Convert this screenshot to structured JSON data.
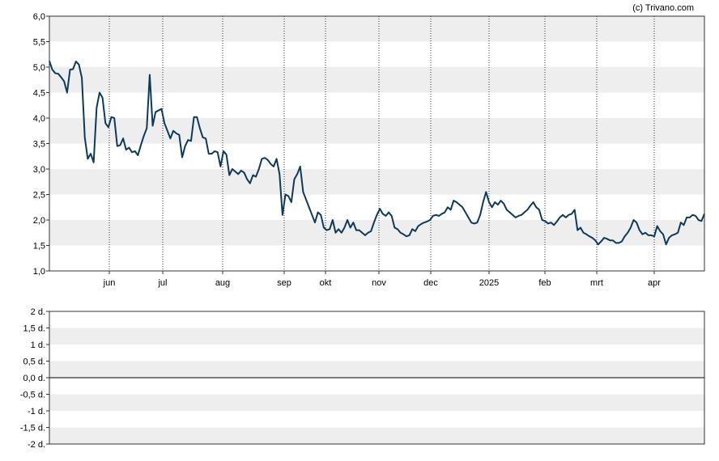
{
  "credit": "(c) Trivano.com",
  "chart_data": [
    {
      "type": "line",
      "name_hint": "price",
      "x_tick_labels": [
        "jun",
        "jul",
        "aug",
        "sep",
        "okt",
        "nov",
        "dec",
        "2025",
        "feb",
        "mrt",
        "apr"
      ],
      "y_tick_labels": [
        "1,0",
        "1,5",
        "2,0",
        "2,5",
        "3,0",
        "3,5",
        "4,0",
        "4,5",
        "5,0",
        "5,5",
        "6,0"
      ],
      "ylim": [
        1.0,
        6.0
      ],
      "grid": true,
      "band_color": "#eeeeee",
      "line_color": "#0b3a5c",
      "series": [
        {
          "values": [
            5.12,
            4.95,
            4.88,
            4.87,
            4.8,
            4.72,
            4.5,
            4.95,
            4.96,
            5.11,
            5.05,
            4.79,
            3.62,
            3.2,
            3.3,
            3.13,
            4.2,
            4.5,
            4.4,
            3.9,
            3.82,
            4.02,
            4.0,
            3.45,
            3.47,
            3.6,
            3.38,
            3.42,
            3.33,
            3.35,
            3.27,
            3.47,
            3.65,
            3.8,
            4.85,
            3.85,
            4.12,
            4.15,
            4.18,
            3.9,
            3.75,
            3.6,
            3.75,
            3.7,
            3.67,
            3.23,
            3.45,
            3.57,
            3.55,
            4.02,
            4.02,
            3.8,
            3.62,
            3.6,
            3.3,
            3.3,
            3.35,
            3.33,
            3.05,
            3.35,
            3.28,
            2.88,
            3.0,
            2.95,
            2.9,
            2.97,
            2.93,
            2.8,
            2.72,
            2.88,
            2.85,
            3.0,
            3.2,
            3.22,
            3.18,
            3.1,
            3.05,
            3.2,
            2.9,
            2.1,
            2.5,
            2.47,
            2.35,
            2.8,
            2.9,
            3.05,
            2.55,
            2.4,
            2.25,
            2.1,
            1.95,
            2.15,
            2.1,
            1.85,
            1.8,
            1.82,
            2.0,
            1.75,
            1.82,
            1.75,
            1.85,
            2.0,
            1.85,
            1.95,
            1.8,
            1.8,
            1.75,
            1.7,
            1.75,
            1.78,
            1.95,
            2.1,
            2.22,
            2.12,
            2.08,
            2.15,
            2.08,
            1.85,
            1.82,
            1.75,
            1.72,
            1.68,
            1.7,
            1.82,
            1.78,
            1.88,
            1.92,
            1.95,
            1.97,
            2.0,
            2.08,
            2.1,
            2.08,
            2.12,
            2.15,
            2.25,
            2.2,
            2.38,
            2.35,
            2.3,
            2.25,
            2.15,
            2.05,
            1.95,
            1.93,
            1.95,
            2.1,
            2.35,
            2.55,
            2.35,
            2.25,
            2.35,
            2.3,
            2.38,
            2.32,
            2.2,
            2.15,
            2.1,
            2.05,
            2.08,
            2.1,
            2.15,
            2.2,
            2.28,
            2.35,
            2.25,
            2.2,
            2.0,
            1.98,
            1.93,
            1.95,
            1.9,
            1.97,
            2.05,
            2.1,
            2.05,
            2.1,
            2.12,
            2.2,
            1.8,
            1.85,
            1.75,
            1.72,
            1.68,
            1.65,
            1.6,
            1.52,
            1.58,
            1.65,
            1.63,
            1.6,
            1.6,
            1.55,
            1.55,
            1.58,
            1.68,
            1.75,
            1.85,
            2.0,
            1.95,
            1.8,
            1.72,
            1.75,
            1.7,
            1.7,
            1.68,
            1.88,
            1.78,
            1.72,
            1.52,
            1.65,
            1.7,
            1.72,
            1.75,
            1.95,
            1.9,
            2.05,
            2.05,
            2.1,
            2.08,
            2.0,
            1.98,
            2.12
          ]
        }
      ]
    },
    {
      "type": "line",
      "name_hint": "dividend",
      "y_tick_labels": [
        "-2 d.",
        "-1,5 d.",
        "-1 d.",
        "-0,5 d.",
        "0,0 d.",
        "0,5 d.",
        "1 d.",
        "1,5 d.",
        "2 d."
      ],
      "ylim": [
        -2,
        2
      ],
      "grid": true,
      "band_color": "#eeeeee",
      "zero_line": true,
      "series": []
    }
  ]
}
